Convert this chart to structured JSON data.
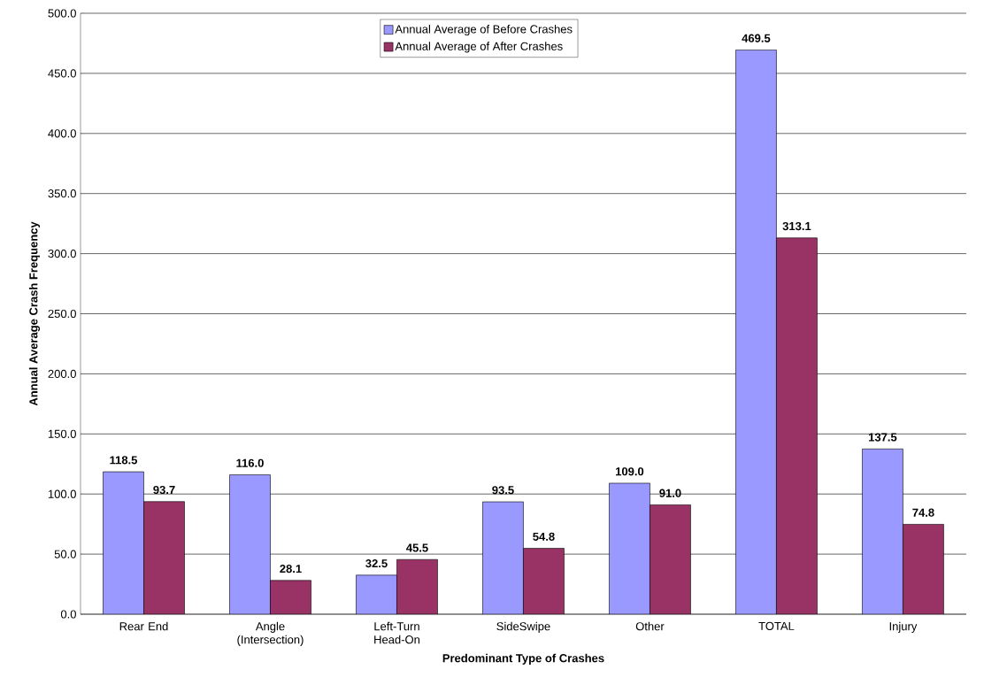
{
  "chart_data": {
    "type": "bar",
    "xlabel": "Predominant Type of Crashes",
    "ylabel": "Annual Average Crash Frequency",
    "categories": [
      "Rear End",
      "Angle (Intersection)",
      "Left-Turn Head-On",
      "SideSwipe",
      "Other",
      "TOTAL",
      "Injury"
    ],
    "series": [
      {
        "name": "Annual Average of Before Crashes",
        "color": "#9999ff",
        "values": [
          118.5,
          116.0,
          32.5,
          93.5,
          109.0,
          469.5,
          137.5
        ],
        "value_labels": [
          "118.5",
          "116.0",
          "32.5",
          "93.5",
          "109.0",
          "469.5",
          "137.5"
        ]
      },
      {
        "name": "Annual Average of After Crashes",
        "color": "#993366",
        "values": [
          93.7,
          28.1,
          45.5,
          54.8,
          91.0,
          313.1,
          74.8
        ],
        "value_labels": [
          "93.7",
          "28.1",
          "45.5",
          "54.8",
          "91.0",
          "313.1",
          "74.8"
        ]
      }
    ],
    "ylim": [
      0,
      500
    ],
    "yticks": [
      {
        "value": 0,
        "label": "0.0"
      },
      {
        "value": 50,
        "label": "50.0"
      },
      {
        "value": 100,
        "label": "100.0"
      },
      {
        "value": 150,
        "label": "150.0"
      },
      {
        "value": 200,
        "label": "200.0"
      },
      {
        "value": 250,
        "label": "250.0"
      },
      {
        "value": 300,
        "label": "300.0"
      },
      {
        "value": 350,
        "label": "350.0"
      },
      {
        "value": 400,
        "label": "400.0"
      },
      {
        "value": 450,
        "label": "450.0"
      },
      {
        "value": 500,
        "label": "500.0"
      }
    ],
    "grid": "y",
    "legend": "top"
  }
}
